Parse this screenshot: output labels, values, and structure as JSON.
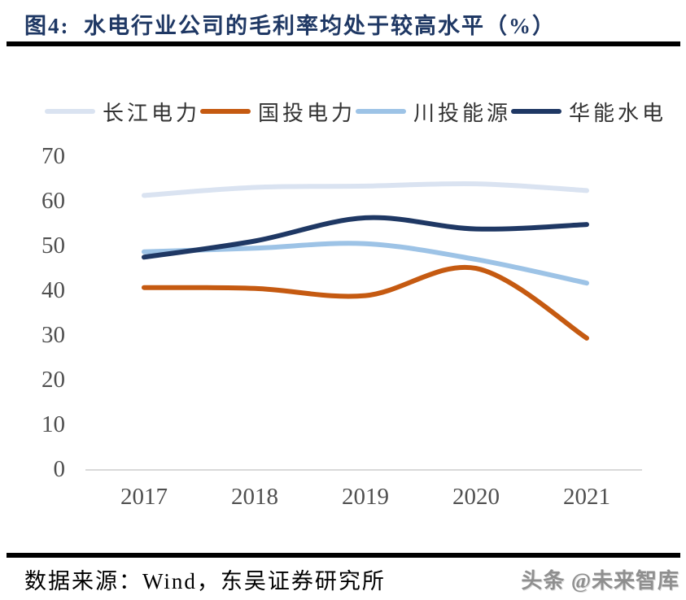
{
  "header": {
    "title": "图4:  水电行业公司的毛利率均处于较高水平（%）"
  },
  "chart_data": {
    "type": "line",
    "title": "水电行业公司的毛利率均处于较高水平（%）",
    "categories": [
      "2017",
      "2018",
      "2019",
      "2020",
      "2021"
    ],
    "series": [
      {
        "name": "长江电力",
        "color": "#DAE3F1",
        "values": [
          61.2,
          63.0,
          63.3,
          63.8,
          62.3
        ]
      },
      {
        "name": "国投电力",
        "color": "#C55A11",
        "values": [
          40.6,
          40.4,
          38.8,
          44.9,
          29.3
        ]
      },
      {
        "name": "川投能源",
        "color": "#9DC3E6",
        "values": [
          48.6,
          49.4,
          50.4,
          46.9,
          41.6
        ]
      },
      {
        "name": "华能水电",
        "color": "#1F3864",
        "values": [
          47.4,
          51.0,
          56.2,
          53.7,
          54.7
        ]
      }
    ],
    "xlabel": "",
    "ylabel": "",
    "ylim": [
      0,
      70
    ],
    "yticks": [
      70,
      60,
      50,
      40,
      30,
      20,
      10,
      0
    ],
    "grid": false,
    "legend_position": "top",
    "line_smooth": true,
    "axis_label_color": "#4f4f4f",
    "baseline_color": "#D9D9D9",
    "title_color": "#1F3864"
  },
  "footer": {
    "source": "数据来源：Wind，东吴证券研究所",
    "watermark": "头条 @未来智库"
  }
}
